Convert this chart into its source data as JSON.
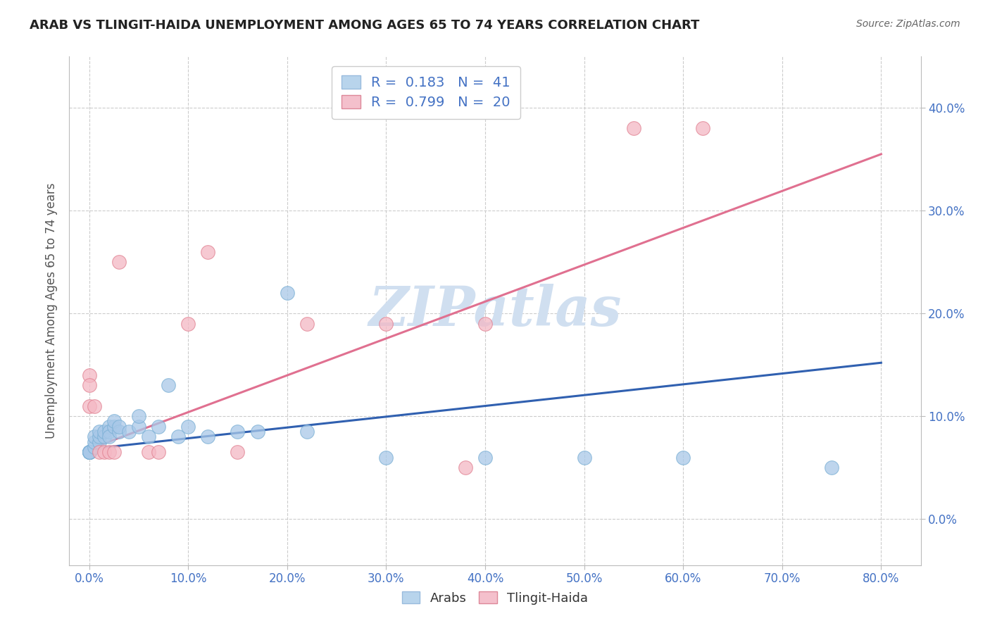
{
  "title": "ARAB VS TLINGIT-HAIDA UNEMPLOYMENT AMONG AGES 65 TO 74 YEARS CORRELATION CHART",
  "source": "Source: ZipAtlas.com",
  "xlabel_ticks": [
    "0.0%",
    "10.0%",
    "20.0%",
    "30.0%",
    "40.0%",
    "50.0%",
    "60.0%",
    "70.0%",
    "80.0%"
  ],
  "xlabel_vals": [
    0.0,
    0.1,
    0.2,
    0.3,
    0.4,
    0.5,
    0.6,
    0.7,
    0.8
  ],
  "ylabel_ticks": [
    "0.0%",
    "10.0%",
    "20.0%",
    "30.0%",
    "40.0%"
  ],
  "ylabel_vals": [
    0.0,
    0.1,
    0.2,
    0.3,
    0.4
  ],
  "ylabel_label": "Unemployment Among Ages 65 to 74 years",
  "xlim": [
    -0.02,
    0.84
  ],
  "ylim": [
    -0.045,
    0.45
  ],
  "arab_R": 0.183,
  "arab_N": 41,
  "tlingit_R": 0.799,
  "tlingit_N": 20,
  "arab_color": "#a8c8e8",
  "tlingit_color": "#f4b8c4",
  "arab_edge_color": "#7aafd4",
  "tlingit_edge_color": "#e08090",
  "arab_line_color": "#3060b0",
  "tlingit_line_color": "#e07090",
  "watermark_text": "ZIPatlas",
  "watermark_color": "#d0dff0",
  "legend_arab_patch": "#b8d4ec",
  "legend_tlingit_patch": "#f4c0cc",
  "arab_scatter_x": [
    0.0,
    0.0,
    0.0,
    0.0,
    0.0,
    0.0,
    0.0,
    0.0,
    0.005,
    0.005,
    0.005,
    0.01,
    0.01,
    0.01,
    0.015,
    0.015,
    0.02,
    0.02,
    0.02,
    0.025,
    0.025,
    0.03,
    0.03,
    0.04,
    0.05,
    0.05,
    0.06,
    0.07,
    0.08,
    0.09,
    0.1,
    0.12,
    0.15,
    0.17,
    0.2,
    0.22,
    0.3,
    0.4,
    0.5,
    0.6,
    0.75
  ],
  "arab_scatter_y": [
    0.065,
    0.065,
    0.065,
    0.065,
    0.065,
    0.065,
    0.065,
    0.065,
    0.07,
    0.075,
    0.08,
    0.075,
    0.08,
    0.085,
    0.08,
    0.085,
    0.09,
    0.085,
    0.08,
    0.09,
    0.095,
    0.085,
    0.09,
    0.085,
    0.09,
    0.1,
    0.08,
    0.09,
    0.13,
    0.08,
    0.09,
    0.08,
    0.085,
    0.085,
    0.22,
    0.085,
    0.06,
    0.06,
    0.06,
    0.06,
    0.05
  ],
  "tlingit_scatter_x": [
    0.0,
    0.0,
    0.0,
    0.005,
    0.01,
    0.015,
    0.02,
    0.025,
    0.03,
    0.06,
    0.07,
    0.1,
    0.12,
    0.15,
    0.22,
    0.3,
    0.38,
    0.4,
    0.55,
    0.62
  ],
  "tlingit_scatter_y": [
    0.14,
    0.13,
    0.11,
    0.11,
    0.065,
    0.065,
    0.065,
    0.065,
    0.25,
    0.065,
    0.065,
    0.19,
    0.26,
    0.065,
    0.19,
    0.19,
    0.05,
    0.19,
    0.38,
    0.38
  ],
  "arab_trend_x0": 0.0,
  "arab_trend_x1": 0.8,
  "arab_trend_y0": 0.068,
  "arab_trend_y1": 0.152,
  "tlingit_trend_x0": 0.0,
  "tlingit_trend_x1": 0.8,
  "tlingit_trend_y0": 0.068,
  "tlingit_trend_y1": 0.355
}
